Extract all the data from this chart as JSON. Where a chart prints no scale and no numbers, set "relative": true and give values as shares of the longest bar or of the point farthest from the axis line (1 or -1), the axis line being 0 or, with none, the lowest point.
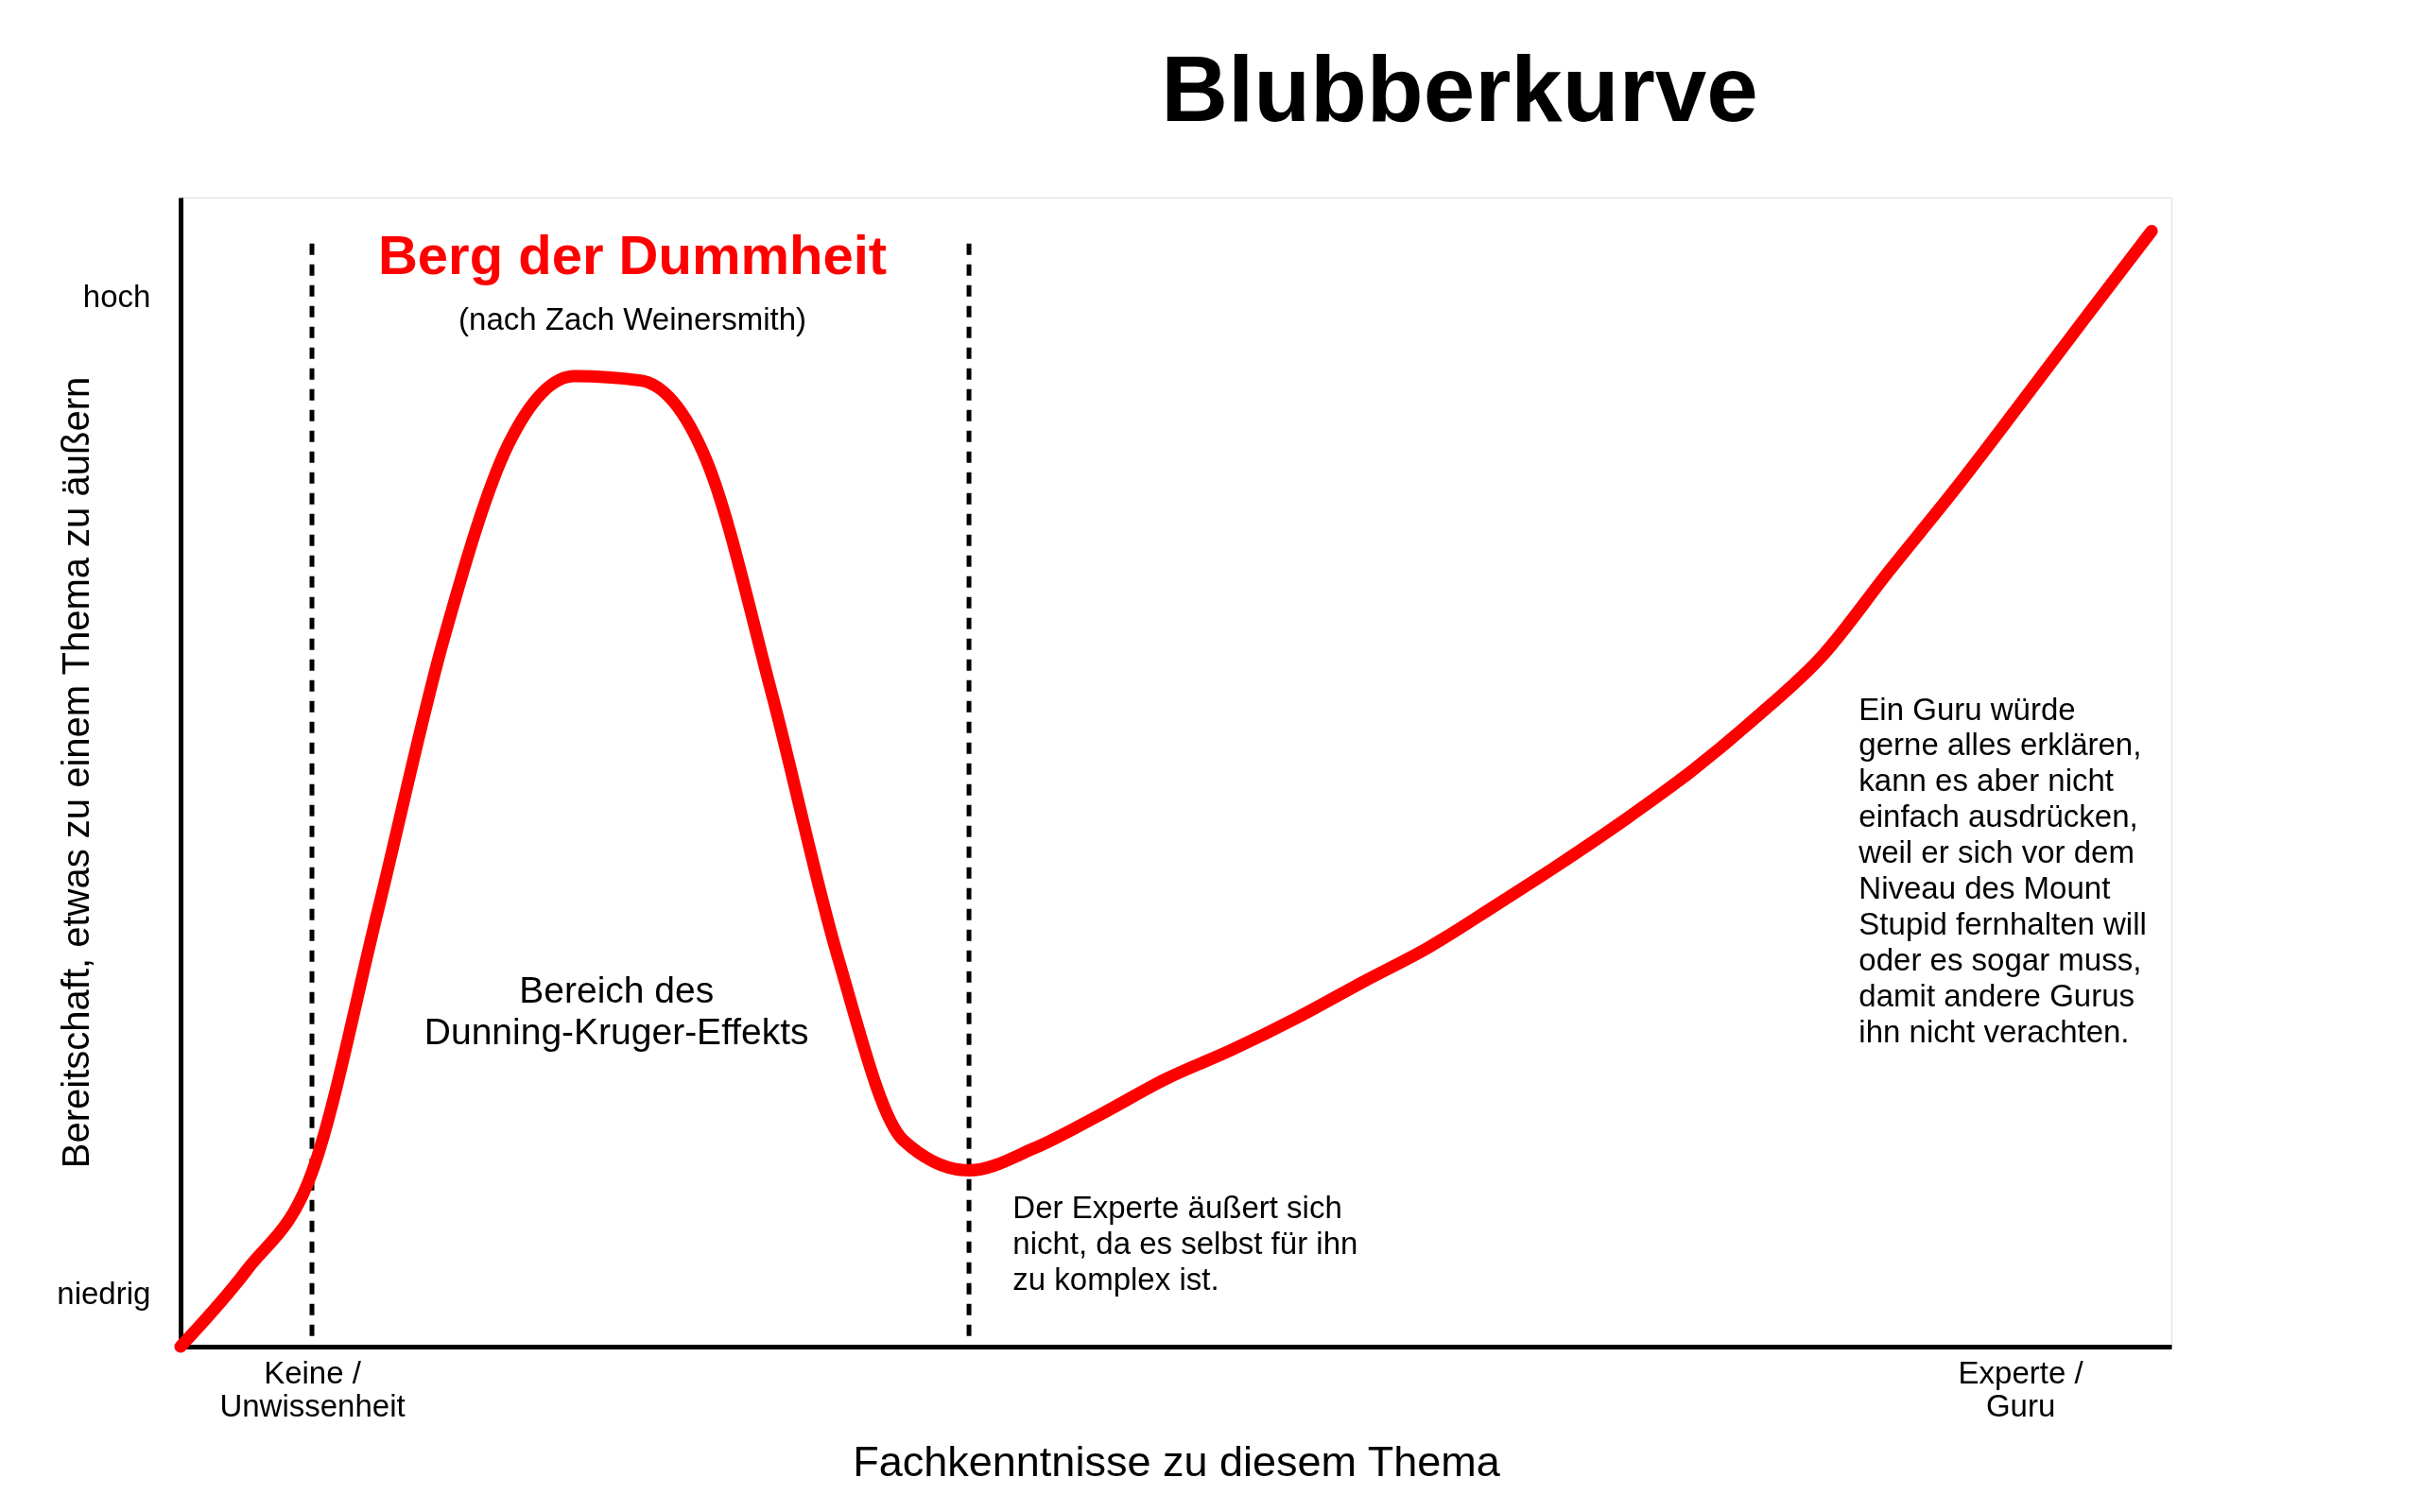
{
  "chart_data": {
    "type": "line",
    "relative": true,
    "title": "Blubberkurve",
    "xlabel": "Fachkenntnisse zu diesem Thema",
    "ylabel": "Bereitschaft, etwas zu einem Thema zu äußern",
    "categories": [
      null,
      null,
      "Keine /\nUnwissenheit",
      null,
      null,
      null,
      null,
      null,
      null,
      null,
      null,
      null,
      null,
      null,
      null,
      null,
      null,
      null,
      null,
      null,
      null,
      null,
      null,
      null,
      null,
      null,
      null,
      null,
      "Experte /\nGuru",
      null,
      null
    ],
    "tick_labels": "x",
    "series": [
      {
        "color": "#ff0000",
        "values": [
          0,
          0.068,
          0.156,
          0.39,
          0.633,
          0.81,
          0.87,
          0.866,
          0.795,
          0.585,
          0.35,
          0.185,
          0.158,
          0.178,
          0.208,
          0.24,
          0.266,
          0.295,
          0.327,
          0.358,
          0.395,
          0.433,
          0.473,
          0.516,
          0.565,
          0.62,
          0.695,
          0.768,
          0.845,
          0.923,
          1
        ]
      }
    ],
    "annotations": [
      "hoch",
      "niedrig",
      "Berg der Dummheit",
      "(nach Zach Weinersmith)",
      "Bereich des\nDunning-Kruger-Effekts",
      "Der Experte äußert sich\nnicht, da es selbst für ihn\nzu komplex ist.",
      "Ein Guru würde\ngerne alles erklären,\nkann es aber nicht\neinfach ausdrücken,\nweil er sich vor dem\nNiveau des Mount\nStupid fernhalten will\noder es sogar muss,\ndamit andere Gurus\nihn nicht verachten."
    ],
    "marker": "none",
    "line_style": "solid"
  }
}
